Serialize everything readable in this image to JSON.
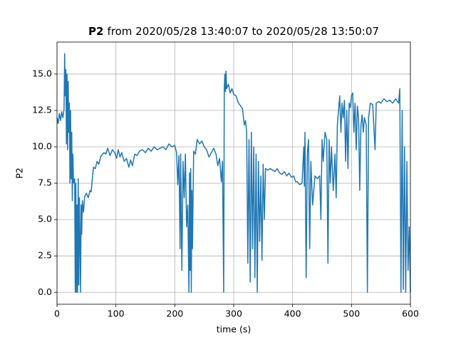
{
  "chart_data": {
    "type": "line",
    "title_parts": [
      "P2",
      "from 2020/05/28 13:40:07 to 2020/05/28 13:50:07"
    ],
    "xlabel": "time (s)",
    "ylabel": "P2",
    "xlim": [
      0,
      600
    ],
    "xticks": [
      0,
      100,
      200,
      300,
      400,
      500,
      600
    ],
    "ylim": [
      -0.82,
      17.2
    ],
    "yticks": [
      {
        "value": 0,
        "label": "0.0"
      },
      {
        "value": 2.5,
        "label": "2.5"
      },
      {
        "value": 5,
        "label": "5.0"
      },
      {
        "value": 7.5,
        "label": "7.5"
      },
      {
        "value": 10,
        "label": "10.0"
      },
      {
        "value": 12.5,
        "label": "12.5"
      },
      {
        "value": 15,
        "label": "15.0"
      }
    ],
    "grid": true,
    "x": [
      0,
      2,
      4,
      6,
      8,
      10,
      12,
      13,
      14,
      15,
      16,
      17,
      18,
      19,
      20,
      21,
      22,
      23,
      24,
      25,
      26,
      27,
      28,
      30,
      31,
      32,
      33,
      34,
      35,
      36,
      37,
      38,
      39,
      40,
      41,
      42,
      43,
      45,
      47,
      50,
      53,
      56,
      58,
      60,
      62,
      65,
      68,
      71,
      74,
      77,
      80,
      83,
      86,
      90,
      94,
      98,
      101,
      104,
      107,
      110,
      114,
      118,
      122,
      125,
      128,
      132,
      136,
      140,
      145,
      150,
      155,
      160,
      165,
      170,
      175,
      180,
      185,
      190,
      195,
      200,
      203,
      205,
      207,
      209,
      210,
      212,
      214,
      216,
      218,
      220,
      222,
      224,
      225,
      226,
      227,
      228,
      229,
      230,
      232,
      235,
      238,
      242,
      246,
      250,
      254,
      258,
      262,
      266,
      270,
      273,
      276,
      279,
      281,
      283,
      284,
      285,
      286,
      287,
      288,
      291,
      294,
      297,
      300,
      304,
      308,
      312,
      315,
      318,
      320,
      322,
      324,
      326,
      328,
      330,
      332,
      334,
      336,
      338,
      340,
      342,
      344,
      346,
      348,
      350,
      352,
      354,
      358,
      362,
      366,
      370,
      374,
      378,
      382,
      386,
      390,
      394,
      398,
      402,
      405,
      408,
      412,
      416,
      419,
      420,
      421,
      423,
      425,
      427,
      429,
      431,
      434,
      438,
      442,
      446,
      448,
      450,
      452,
      455,
      458,
      460,
      462,
      464,
      466,
      469,
      472,
      474,
      476,
      478,
      480,
      482,
      484,
      486,
      488,
      490,
      492,
      494,
      496,
      498,
      500,
      502,
      504,
      506,
      508,
      510,
      512,
      514,
      516,
      518,
      520,
      522,
      525,
      527,
      529,
      532,
      536,
      540,
      542,
      546,
      550,
      555,
      560,
      565,
      570,
      575,
      580,
      582,
      584,
      586,
      588,
      590,
      592,
      594,
      596,
      598,
      600
    ],
    "series": [
      {
        "name": "P2",
        "color": "#1f77b4",
        "values": [
          12.0,
          11.6,
          12.3,
          11.8,
          12.4,
          12.0,
          12.6,
          16.4,
          13.5,
          15.3,
          10.2,
          15.0,
          9.8,
          14.5,
          11.0,
          13.0,
          7.5,
          12.5,
          7.8,
          11.0,
          6.3,
          9.5,
          7.5,
          7.8,
          0.0,
          7.5,
          0.0,
          6.0,
          0.0,
          7.8,
          0.5,
          6.5,
          3.5,
          0.0,
          6.0,
          4.0,
          6.3,
          5.5,
          6.6,
          6.8,
          6.5,
          7.0,
          6.9,
          7.8,
          8.6,
          8.5,
          9.0,
          8.8,
          9.3,
          9.5,
          9.6,
          9.5,
          9.9,
          9.4,
          9.8,
          9.6,
          9.2,
          9.8,
          9.3,
          9.6,
          9.0,
          9.2,
          8.6,
          9.1,
          8.7,
          9.5,
          9.4,
          9.7,
          9.8,
          9.6,
          9.9,
          9.7,
          10.0,
          9.8,
          9.9,
          10.0,
          9.8,
          10.2,
          10.0,
          10.1,
          9.6,
          7.4,
          9.4,
          3.0,
          9.5,
          1.5,
          9.0,
          6.5,
          9.5,
          4.5,
          6.0,
          0.0,
          8.2,
          1.5,
          8.5,
          0.0,
          7.0,
          3.0,
          9.7,
          9.5,
          10.5,
          10.2,
          10.4,
          10.0,
          9.8,
          9.3,
          9.6,
          9.9,
          9.5,
          8.7,
          9.2,
          7.6,
          9.0,
          0.0,
          14.0,
          15.0,
          13.8,
          15.2,
          14.0,
          14.3,
          13.7,
          14.0,
          13.6,
          13.5,
          13.0,
          12.8,
          12.6,
          11.5,
          11.8,
          11.0,
          2.0,
          10.5,
          0.7,
          11.0,
          3.0,
          10.0,
          1.0,
          9.5,
          0.0,
          9.0,
          3.5,
          8.0,
          2.2,
          8.8,
          5.0,
          8.5,
          8.4,
          8.5,
          8.4,
          8.3,
          8.5,
          8.2,
          8.1,
          8.3,
          8.0,
          8.2,
          7.9,
          8.0,
          7.6,
          7.6,
          7.4,
          7.5,
          10.0,
          7.3,
          11.0,
          1.0,
          9.5,
          10.5,
          3.0,
          9.0,
          6.0,
          8.0,
          7.8,
          8.0,
          5.0,
          10.5,
          9.0,
          11.0,
          10.5,
          2.0,
          10.5,
          7.5,
          10.0,
          7.0,
          9.5,
          6.5,
          11.5,
          12.5,
          13.5,
          11.0,
          13.0,
          12.0,
          13.2,
          9.0,
          12.5,
          8.5,
          13.0,
          12.7,
          13.5,
          13.7,
          11.0,
          13.0,
          9.8,
          12.8,
          12.0,
          7.0,
          11.5,
          12.2,
          11.0,
          12.0,
          11.5,
          0.0,
          12.0,
          13.0,
          12.9,
          9.8,
          13.0,
          13.1,
          13.0,
          13.3,
          13.1,
          13.2,
          13.0,
          13.3,
          13.0,
          14.0,
          0.0,
          12.5,
          0.2,
          10.0,
          0.0,
          9.0,
          1.5,
          4.5,
          0.0
        ]
      }
    ]
  }
}
